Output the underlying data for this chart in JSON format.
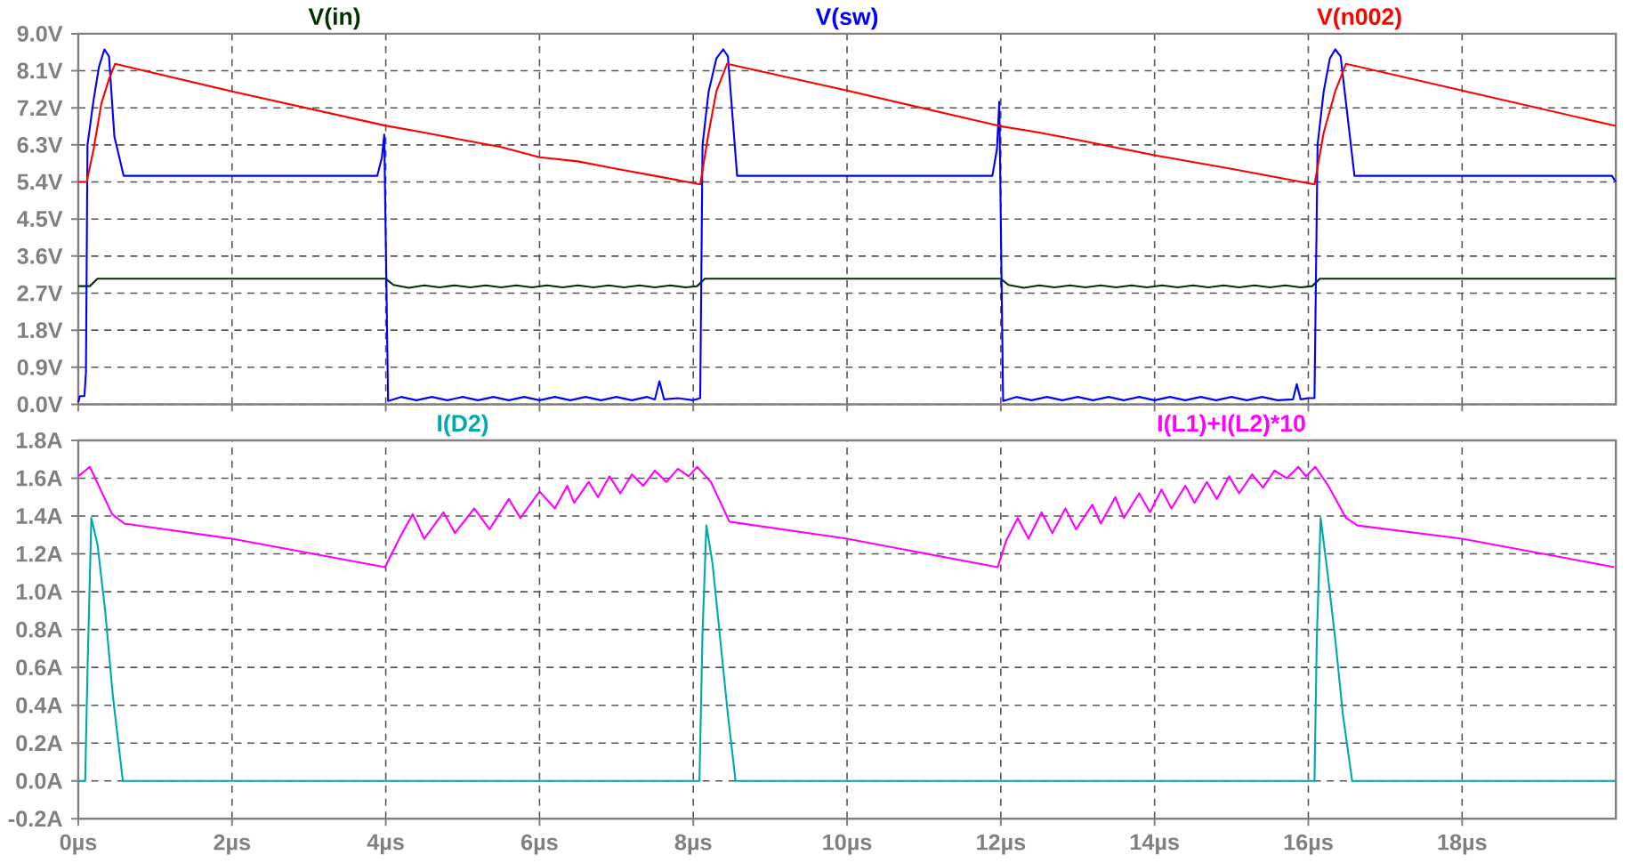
{
  "chart_data": [
    {
      "type": "line",
      "grid": true,
      "legend": "top",
      "tick_labels": "y",
      "xlim": [
        0,
        20
      ],
      "xticks": [
        {
          "value": 0,
          "label": null
        },
        {
          "value": 2,
          "label": null
        },
        {
          "value": 4,
          "label": null
        },
        {
          "value": 6,
          "label": null
        },
        {
          "value": 8,
          "label": null
        },
        {
          "value": 10,
          "label": null
        },
        {
          "value": 12,
          "label": null
        },
        {
          "value": 14,
          "label": null
        },
        {
          "value": 16,
          "label": null
        },
        {
          "value": 18,
          "label": null
        }
      ],
      "ylim": [
        0,
        9
      ],
      "yticks": [
        {
          "value": 0,
          "label": "0.0V"
        },
        {
          "value": 0.9,
          "label": "0.9V"
        },
        {
          "value": 1.8,
          "label": "1.8V"
        },
        {
          "value": 2.7,
          "label": "2.7V"
        },
        {
          "value": 3.6,
          "label": "3.6V"
        },
        {
          "value": 4.5,
          "label": "4.5V"
        },
        {
          "value": 5.4,
          "label": "5.4V"
        },
        {
          "value": 6.3,
          "label": "6.3V"
        },
        {
          "value": 7.2,
          "label": "7.2V"
        },
        {
          "value": 8.1,
          "label": "8.1V"
        },
        {
          "value": 9,
          "label": "9.0V"
        }
      ],
      "series": [
        {
          "name": "V(in)",
          "color": "#003300",
          "x": [
            0,
            0.15,
            0.25,
            4.0,
            4.1,
            4.3,
            4.5,
            4.7,
            4.9,
            5.1,
            5.3,
            5.5,
            5.7,
            5.9,
            6.1,
            6.3,
            6.5,
            6.7,
            6.9,
            7.1,
            7.3,
            7.5,
            7.7,
            7.9,
            8.05,
            8.15,
            8.25,
            12.0,
            12.1,
            12.3,
            12.5,
            12.7,
            12.9,
            13.1,
            13.3,
            13.5,
            13.7,
            13.9,
            14.1,
            14.3,
            14.5,
            14.7,
            14.9,
            15.1,
            15.3,
            15.5,
            15.7,
            15.9,
            16.05,
            16.15,
            16.25,
            20
          ],
          "values": [
            2.87,
            2.87,
            3.05,
            3.05,
            2.9,
            2.83,
            2.89,
            2.84,
            2.89,
            2.84,
            2.89,
            2.84,
            2.89,
            2.84,
            2.89,
            2.84,
            2.89,
            2.84,
            2.89,
            2.84,
            2.89,
            2.84,
            2.89,
            2.84,
            2.87,
            3.05,
            3.05,
            3.05,
            2.9,
            2.83,
            2.89,
            2.84,
            2.89,
            2.84,
            2.89,
            2.84,
            2.89,
            2.84,
            2.89,
            2.84,
            2.89,
            2.84,
            2.89,
            2.84,
            2.89,
            2.84,
            2.89,
            2.84,
            2.87,
            3.05,
            3.05,
            3.05
          ]
        },
        {
          "name": "V(sw)",
          "color": "#0000ff",
          "x": [
            0,
            0.02,
            0.08,
            0.1,
            0.12,
            0.2,
            0.27,
            0.34,
            0.4,
            0.47,
            0.59,
            3.89,
            3.95,
            3.98,
            4.03,
            4.2,
            4.4,
            4.6,
            4.8,
            5.0,
            5.2,
            5.4,
            5.6,
            5.8,
            6.0,
            6.2,
            6.4,
            6.6,
            6.8,
            7.0,
            7.2,
            7.4,
            7.5,
            7.56,
            7.62,
            7.8,
            8.0,
            8.09,
            8.12,
            8.2,
            8.3,
            8.39,
            8.45,
            8.57,
            11.89,
            11.95,
            11.98,
            12.03,
            12.2,
            12.4,
            12.6,
            12.8,
            13.0,
            13.2,
            13.4,
            13.6,
            13.8,
            14.0,
            14.2,
            14.4,
            14.6,
            14.8,
            15.0,
            15.2,
            15.4,
            15.6,
            15.8,
            15.85,
            15.9,
            16.0,
            16.08,
            16.12,
            16.2,
            16.28,
            16.35,
            16.42,
            16.6,
            19.95,
            20
          ],
          "values": [
            0.05,
            0.2,
            0.2,
            0.78,
            6.3,
            7.4,
            8.2,
            8.62,
            8.45,
            6.5,
            5.55,
            5.55,
            6.0,
            6.55,
            0.08,
            0.18,
            0.1,
            0.18,
            0.1,
            0.18,
            0.1,
            0.18,
            0.1,
            0.18,
            0.1,
            0.18,
            0.1,
            0.18,
            0.1,
            0.18,
            0.1,
            0.18,
            0.12,
            0.56,
            0.12,
            0.15,
            0.1,
            0.15,
            6.3,
            7.6,
            8.4,
            8.62,
            8.45,
            5.55,
            5.55,
            6.2,
            7.35,
            0.08,
            0.18,
            0.1,
            0.18,
            0.1,
            0.18,
            0.1,
            0.18,
            0.1,
            0.18,
            0.1,
            0.18,
            0.1,
            0.18,
            0.1,
            0.18,
            0.1,
            0.18,
            0.1,
            0.12,
            0.49,
            0.12,
            0.15,
            0.15,
            6.3,
            7.6,
            8.4,
            8.62,
            8.45,
            5.55,
            5.55,
            5.4
          ]
        },
        {
          "name": "V(n002)",
          "color": "#ff0000",
          "x": [
            0,
            0.11,
            0.2,
            0.3,
            0.4,
            0.48,
            2,
            3.99,
            4.5,
            5,
            5.5,
            6,
            6.5,
            7,
            7.5,
            8.09,
            8.2,
            8.3,
            8.44,
            10,
            11.98,
            12.5,
            13,
            14,
            15,
            16.08,
            16.2,
            16.35,
            16.49,
            18,
            20
          ],
          "values": [
            5.4,
            5.4,
            6.2,
            7.3,
            7.9,
            8.27,
            7.6,
            6.77,
            6.6,
            6.42,
            6.25,
            6.0,
            5.9,
            5.72,
            5.55,
            5.34,
            6.6,
            7.6,
            8.27,
            7.62,
            6.76,
            6.6,
            6.42,
            6.05,
            5.72,
            5.34,
            6.6,
            7.6,
            8.27,
            7.62,
            6.76
          ]
        }
      ]
    },
    {
      "type": "line",
      "grid": true,
      "legend": "top",
      "xlim": [
        0,
        20
      ],
      "xticks": [
        {
          "value": 0,
          "label": "0µs"
        },
        {
          "value": 2,
          "label": "2µs"
        },
        {
          "value": 4,
          "label": "4µs"
        },
        {
          "value": 6,
          "label": "6µs"
        },
        {
          "value": 8,
          "label": "8µs"
        },
        {
          "value": 10,
          "label": "10µs"
        },
        {
          "value": 12,
          "label": "12µs"
        },
        {
          "value": 14,
          "label": "14µs"
        },
        {
          "value": 16,
          "label": "16µs"
        },
        {
          "value": 18,
          "label": "18µs"
        }
      ],
      "ylim": [
        -0.2,
        1.8
      ],
      "yticks": [
        {
          "value": -0.2,
          "label": "-0.2A"
        },
        {
          "value": 0,
          "label": "0.0A"
        },
        {
          "value": 0.2,
          "label": "0.2A"
        },
        {
          "value": 0.4,
          "label": "0.4A"
        },
        {
          "value": 0.6,
          "label": "0.6A"
        },
        {
          "value": 0.8,
          "label": "0.8A"
        },
        {
          "value": 1.0,
          "label": "1.0A"
        },
        {
          "value": 1.2,
          "label": "1.2A"
        },
        {
          "value": 1.4,
          "label": "1.4A"
        },
        {
          "value": 1.6,
          "label": "1.6A"
        },
        {
          "value": 1.8,
          "label": "1.8A"
        }
      ],
      "series": [
        {
          "name": "I(D2)",
          "color": "#00aaaa",
          "x": [
            0,
            0.09,
            0.12,
            0.17,
            0.25,
            0.35,
            0.45,
            0.58,
            8.08,
            8.12,
            8.17,
            8.25,
            8.35,
            8.45,
            8.55,
            16.08,
            16.11,
            16.16,
            16.25,
            16.35,
            16.45,
            16.57,
            20
          ],
          "values": [
            0,
            0,
            0.58,
            1.39,
            1.25,
            0.9,
            0.45,
            0,
            0,
            0.78,
            1.35,
            1.15,
            0.75,
            0.35,
            0,
            0,
            0.75,
            1.39,
            1.1,
            0.75,
            0.35,
            0,
            0
          ]
        },
        {
          "name": "I(L1)+I(L2)*10",
          "color": "#ff00ff",
          "x": [
            0,
            0.15,
            0.44,
            0.6,
            2,
            3.99,
            4.2,
            4.35,
            4.5,
            4.75,
            4.9,
            5.15,
            5.35,
            5.6,
            5.75,
            6.0,
            6.2,
            6.36,
            6.45,
            6.64,
            6.76,
            6.91,
            7.05,
            7.2,
            7.35,
            7.5,
            7.65,
            7.8,
            7.94,
            8.05,
            8.23,
            8.47,
            10,
            11.96,
            12.07,
            12.22,
            12.36,
            12.53,
            12.67,
            12.84,
            12.98,
            13.19,
            13.3,
            13.49,
            13.6,
            13.8,
            13.94,
            14.09,
            14.22,
            14.4,
            14.52,
            14.68,
            14.81,
            14.97,
            15.1,
            15.27,
            15.41,
            15.56,
            15.72,
            15.87,
            15.97,
            16.09,
            16.26,
            16.49,
            16.64,
            18,
            19.98
          ],
          "values": [
            1.61,
            1.66,
            1.41,
            1.36,
            1.28,
            1.13,
            1.3,
            1.41,
            1.28,
            1.42,
            1.31,
            1.44,
            1.33,
            1.49,
            1.39,
            1.53,
            1.44,
            1.56,
            1.47,
            1.58,
            1.5,
            1.61,
            1.52,
            1.62,
            1.56,
            1.64,
            1.58,
            1.65,
            1.61,
            1.66,
            1.58,
            1.37,
            1.28,
            1.13,
            1.27,
            1.39,
            1.28,
            1.42,
            1.31,
            1.44,
            1.33,
            1.46,
            1.36,
            1.5,
            1.39,
            1.52,
            1.42,
            1.54,
            1.44,
            1.56,
            1.47,
            1.58,
            1.49,
            1.61,
            1.52,
            1.62,
            1.55,
            1.64,
            1.6,
            1.66,
            1.61,
            1.66,
            1.56,
            1.39,
            1.35,
            1.28,
            1.13
          ]
        }
      ]
    }
  ]
}
